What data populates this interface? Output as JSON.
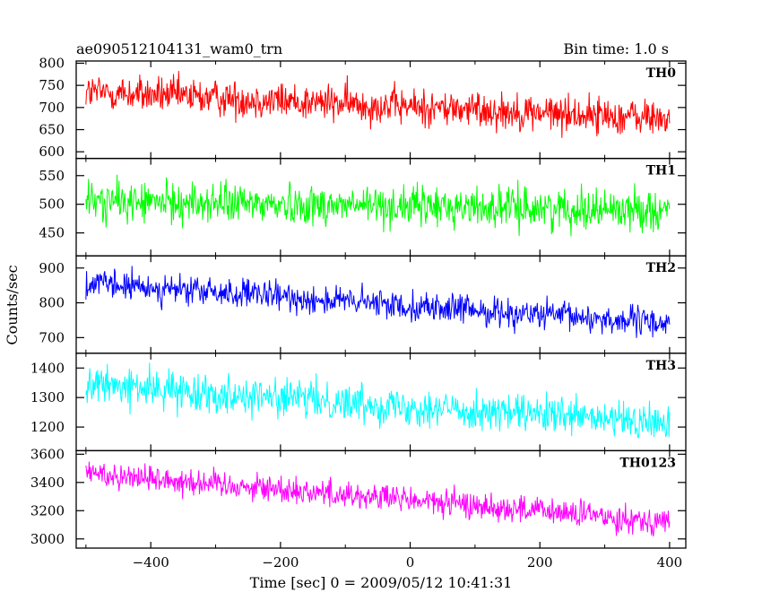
{
  "header": {
    "title": "ae090512104131_wam0_trn",
    "bin_time": "Bin time: 1.0 s"
  },
  "chart_data": {
    "type": "line",
    "title": "ae090512104131_wam0_trn",
    "subtitle": "Bin time: 1.0 s",
    "xlabel": "Time [sec] 0 = 2009/05/12 10:41:31",
    "ylabel": "Counts/sec",
    "xlim": [
      -515,
      425
    ],
    "x_ticks": [
      -400,
      -200,
      0,
      200,
      400
    ],
    "x_tick_labels": [
      "−400",
      "−200",
      "0",
      "200",
      "400"
    ],
    "x_range_data": [
      -500,
      400
    ],
    "bin_seconds": 1.0,
    "grid": false,
    "panels": [
      {
        "name": "TH0",
        "color": "#ff0000",
        "ylim": [
          585,
          805
        ],
        "y_ticks": [
          600,
          650,
          700,
          750,
          800
        ],
        "trend_start": 735,
        "trend_end": 675,
        "noise_amplitude": 30
      },
      {
        "name": "TH1",
        "color": "#00ff00",
        "ylim": [
          410,
          580
        ],
        "y_ticks": [
          450,
          500,
          550
        ],
        "trend_start": 505,
        "trend_end": 490,
        "noise_amplitude": 25
      },
      {
        "name": "TH2",
        "color": "#0000ff",
        "ylim": [
          655,
          935
        ],
        "y_ticks": [
          700,
          800,
          900
        ],
        "trend_start": 855,
        "trend_end": 740,
        "noise_amplitude": 30
      },
      {
        "name": "TH3",
        "color": "#00ffff",
        "ylim": [
          1120,
          1450
        ],
        "y_ticks": [
          1200,
          1300,
          1400
        ],
        "trend_start": 1345,
        "trend_end": 1210,
        "noise_amplitude": 45
      },
      {
        "name": "TH0123",
        "color": "#ff00ff",
        "ylim": [
          2935,
          3625
        ],
        "y_ticks": [
          3000,
          3200,
          3400,
          3600
        ],
        "trend_start": 3470,
        "trend_end": 3120,
        "noise_amplitude": 70
      }
    ]
  }
}
